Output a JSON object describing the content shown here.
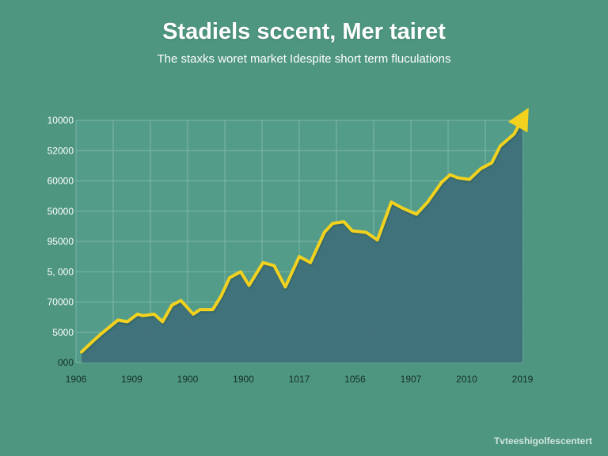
{
  "title": "Stadiels sccent, Mer tairet",
  "subtitle": "The staxks woret market Idespite short term fluculations",
  "watermark": "Tvteeshigolfescentert",
  "colors": {
    "background": "#4e9680",
    "area": "#3f6f7a",
    "line": "#f2d21e",
    "grid": "#8cc1b2",
    "tick": "#ffffff",
    "tick_dark": "#16302a"
  },
  "chart_data": {
    "type": "area",
    "title": "Stadiels sccent, Mer tairet",
    "subtitle": "The staxks woret market Idespite short term fluculations",
    "xlabel": "",
    "ylabel": "",
    "grid": true,
    "legend": "none",
    "y_tick_labels": [
      "000",
      "5000",
      "70000",
      "5, 000",
      "95000",
      "50000",
      "60000",
      "52000",
      "10000"
    ],
    "x_tick_labels": [
      "1906",
      "1909",
      "1900",
      "1900",
      "1017",
      "1056",
      "1907",
      "2010",
      "2019"
    ],
    "y_range": [
      0,
      8
    ],
    "x_range": [
      0,
      8
    ],
    "series": [
      {
        "type": "line-with-area",
        "x": [
          0.1,
          0.3,
          0.45,
          0.55,
          0.75,
          0.92,
          1.1,
          1.2,
          1.4,
          1.55,
          1.72,
          1.88,
          2.1,
          2.22,
          2.45,
          2.6,
          2.75,
          2.95,
          3.1,
          3.35,
          3.55,
          3.75,
          4.0,
          4.2,
          4.45,
          4.6,
          4.8,
          4.95,
          5.2,
          5.4,
          5.65,
          5.85,
          6.1,
          6.3,
          6.55,
          6.7,
          6.85,
          7.05,
          7.25,
          7.45,
          7.6,
          7.85,
          8.0
        ],
        "values": [
          0.35,
          0.7,
          0.95,
          1.1,
          1.4,
          1.35,
          1.6,
          1.55,
          1.6,
          1.35,
          1.9,
          2.05,
          1.6,
          1.75,
          1.75,
          2.2,
          2.8,
          3.0,
          2.55,
          3.3,
          3.2,
          2.5,
          3.5,
          3.3,
          4.3,
          4.6,
          4.65,
          4.35,
          4.3,
          4.05,
          5.3,
          5.1,
          4.9,
          5.3,
          5.95,
          6.2,
          6.1,
          6.05,
          6.4,
          6.6,
          7.15,
          7.55,
          8.05
        ]
      }
    ]
  }
}
